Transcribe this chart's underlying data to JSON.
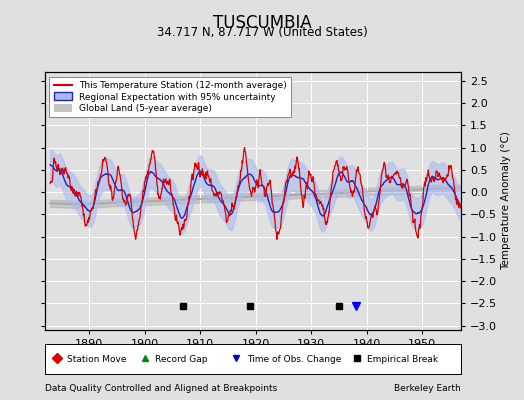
{
  "title": "TUSCUMBIA",
  "subtitle": "34.717 N, 87.717 W (United States)",
  "xlabel_left": "Data Quality Controlled and Aligned at Breakpoints",
  "xlabel_right": "Berkeley Earth",
  "ylabel_right": "Temperature Anomaly (°C)",
  "xlim": [
    1882,
    1957
  ],
  "ylim": [
    -3.1,
    2.7
  ],
  "yticks": [
    -3,
    -2.5,
    -2,
    -1.5,
    -1,
    -0.5,
    0,
    0.5,
    1,
    1.5,
    2,
    2.5
  ],
  "xticks": [
    1890,
    1900,
    1910,
    1920,
    1930,
    1940,
    1950
  ],
  "background_color": "#e0e0e0",
  "plot_bg_color": "#e0e0e0",
  "grid_color": "#ffffff",
  "station_color": "#dd0000",
  "regional_color": "#2222bb",
  "regional_fill_color": "#aabbee",
  "global_color": "#aaaaaa",
  "legend_loc": "upper left",
  "marker_events": {
    "station_move": [],
    "record_gap": [],
    "time_obs_change": [
      1938
    ],
    "empirical_break": [
      1907,
      1919,
      1935
    ]
  },
  "seed": 17
}
